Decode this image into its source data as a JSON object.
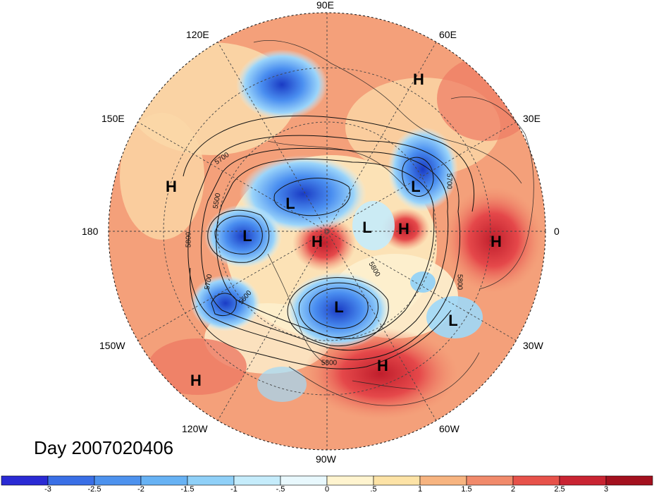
{
  "map": {
    "longitude_labels": {
      "lon_90e": "90E",
      "lon_60e": "60E",
      "lon_30e": "30E",
      "lon_0": "0",
      "lon_30w": "30W",
      "lon_60w": "60W",
      "lon_90w": "90W",
      "lon_120w": "120W",
      "lon_150w": "150W",
      "lon_180": "180",
      "lon_150e": "150E",
      "lon_120e": "120E"
    },
    "pressure_centers": [
      "H",
      "H",
      "L",
      "L",
      "L",
      "H",
      "L",
      "H",
      "H",
      "L",
      "L",
      "H",
      "H"
    ],
    "contour_labels": [
      "5700",
      "5500",
      "5800",
      "5700",
      "5600",
      "5700",
      "5800",
      "5800",
      "5800"
    ]
  },
  "day_label": "Day 2007020406",
  "colorbar": {
    "tick_labels": [
      "-3",
      "-2.5",
      "-2",
      "-1.5",
      "-1",
      "-.5",
      "0",
      ".5",
      "1",
      "1.5",
      "2",
      "2.5",
      "3"
    ],
    "colors": [
      "#2a2ad4",
      "#3a6fe6",
      "#4d92ee",
      "#67b2f4",
      "#8fd0f8",
      "#c5ecfb",
      "#e8f8fd",
      "#fff4cf",
      "#fde3a6",
      "#f7b480",
      "#f18a6b",
      "#e7524a",
      "#c92432",
      "#a3101e"
    ]
  },
  "palette": {
    "ocean_warm": "#f4a07a",
    "land_warm": "#fbd8a8",
    "strong_red": "#d6303a",
    "strong_blue": "#2f5fd0"
  }
}
